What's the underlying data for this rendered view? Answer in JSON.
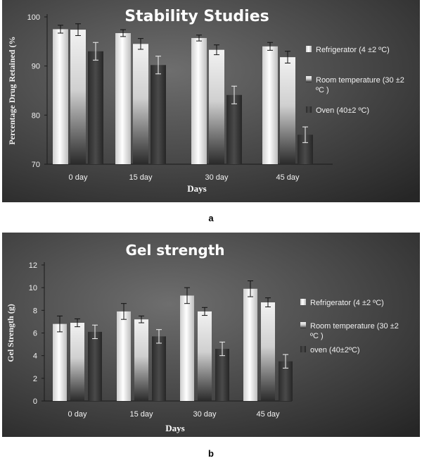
{
  "chart_data": [
    {
      "type": "bar",
      "title": "Stability Studies",
      "xlabel": "Days",
      "ylabel": "Percentage Drug Retained (%",
      "categories": [
        "0 day",
        "15 day",
        "30 day",
        "45 day"
      ],
      "ylim": [
        70,
        100
      ],
      "yticks": [
        "70",
        "80",
        "90",
        "100"
      ],
      "series": [
        {
          "name": "Refrigerator (4 ±2 ºC)",
          "values": [
            97.5,
            96.7,
            95.7,
            94.0
          ],
          "errors": [
            0.8,
            0.7,
            0.6,
            0.8
          ]
        },
        {
          "name": "Room temperature (30 ±2 ºC )",
          "values": [
            97.4,
            94.5,
            93.3,
            91.8
          ],
          "errors": [
            1.2,
            1.1,
            1.0,
            1.2
          ]
        },
        {
          "name": "Oven (40±2 ºC)",
          "values": [
            93.0,
            90.2,
            84.1,
            76.0
          ],
          "errors": [
            1.8,
            1.8,
            1.8,
            1.6
          ]
        }
      ],
      "legend": "right",
      "grid": false
    },
    {
      "type": "bar",
      "title": "Gel strength",
      "xlabel": "Days",
      "ylabel": "Gel Strength (g)",
      "categories": [
        "0 day",
        "15 day",
        "30 day",
        "45 day"
      ],
      "ylim": [
        0,
        12
      ],
      "yticks": [
        "0",
        "2",
        "4",
        "6",
        "8",
        "10",
        "12"
      ],
      "series": [
        {
          "name": "Refrigerator (4 ±2 ºC)",
          "values": [
            6.8,
            7.9,
            9.3,
            9.9
          ],
          "errors": [
            0.7,
            0.7,
            0.7,
            0.7
          ]
        },
        {
          "name": "Room temperature (30 ±2 ºC )",
          "values": [
            6.9,
            7.2,
            7.9,
            8.7
          ],
          "errors": [
            0.35,
            0.3,
            0.35,
            0.4
          ]
        },
        {
          "name": "oven (40±2ºC)",
          "values": [
            6.1,
            5.7,
            4.6,
            3.5
          ],
          "errors": [
            0.6,
            0.6,
            0.6,
            0.6
          ]
        }
      ],
      "legend": "right",
      "grid": false
    }
  ],
  "captions": {
    "a": "a",
    "b": "b"
  },
  "colors": {
    "background_light": "#6e6e6e",
    "background_dark": "#262626",
    "refrigerator": "#e8e8e8",
    "room_temperature": "#d4d4d4",
    "oven": "#3a3a3a"
  }
}
